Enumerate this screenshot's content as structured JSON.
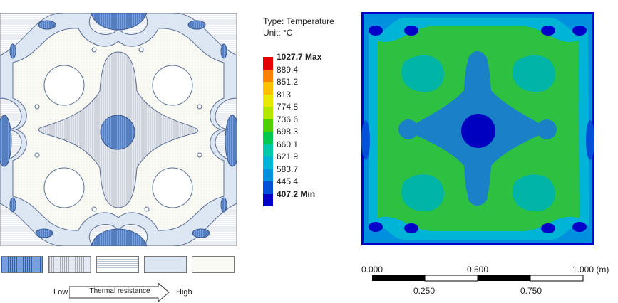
{
  "legend": {
    "type_line": "Type: Temperature",
    "unit_line": "Unit: °C",
    "entries": [
      {
        "label": "1027.7 Max",
        "color": "#e60000"
      },
      {
        "label": "889.4",
        "color": "#ff8000"
      },
      {
        "label": "851.2",
        "color": "#ffc000"
      },
      {
        "label": "813",
        "color": "#e8e800"
      },
      {
        "label": "774.8",
        "color": "#b4e800"
      },
      {
        "label": "736.6",
        "color": "#50d000"
      },
      {
        "label": "698.3",
        "color": "#00c850"
      },
      {
        "label": "660.1",
        "color": "#00c8a8"
      },
      {
        "label": "621.9",
        "color": "#00b4d8"
      },
      {
        "label": "583.7",
        "color": "#0090e0"
      },
      {
        "label": "445.4",
        "color": "#0050d8"
      },
      {
        "label": "407.2 Min",
        "color": "#0000c8"
      }
    ]
  },
  "resistance_scale": {
    "low_label": "Low",
    "arrow_label": "Thermal resistance",
    "high_label": "High"
  },
  "scale_bar": {
    "top_labels": [
      "0.000",
      "0.500",
      "1.000 (m)"
    ],
    "bottom_labels": [
      "0.250",
      "0.750"
    ]
  }
}
